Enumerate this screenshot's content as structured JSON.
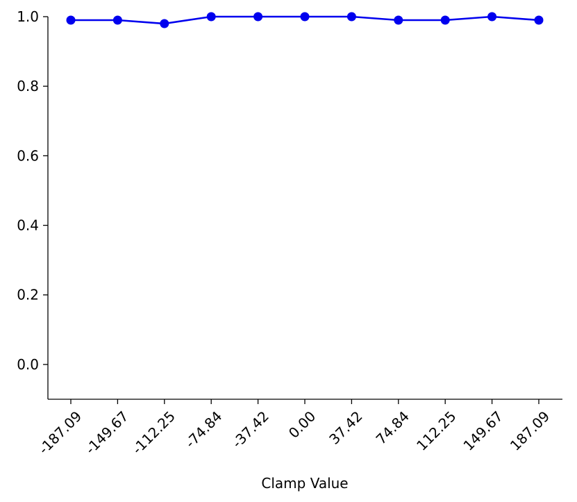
{
  "chart_data": {
    "type": "line",
    "title": "",
    "xlabel": "Clamp Value",
    "ylabel": "",
    "categories": [
      "-187.09",
      "-149.67",
      "-112.25",
      "-74.84",
      "-37.42",
      "0.00",
      "37.42",
      "74.84",
      "112.25",
      "149.67",
      "187.09"
    ],
    "series": [
      {
        "values": [
          0.99,
          0.99,
          0.98,
          1.0,
          1.0,
          1.0,
          1.0,
          0.99,
          0.99,
          1.0,
          0.99
        ],
        "color": "#0000ee"
      }
    ],
    "ylim": [
      -0.1,
      1.0
    ],
    "yticks": [
      "0.0",
      "0.2",
      "0.4",
      "0.6",
      "0.8",
      "1.0"
    ],
    "grid": false,
    "legend": "none"
  }
}
